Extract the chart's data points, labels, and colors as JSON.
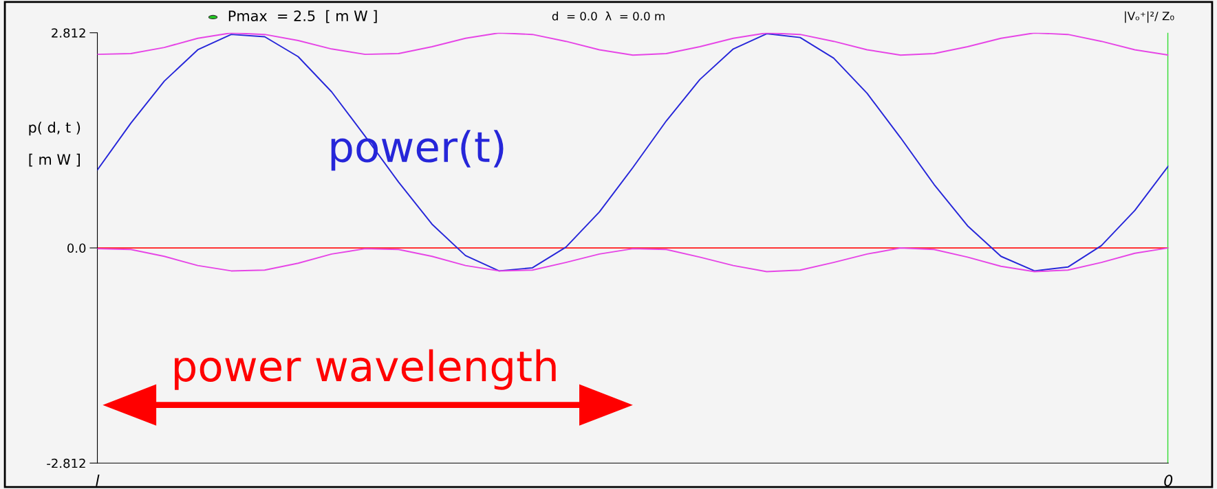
{
  "chart_data": {
    "type": "line",
    "categories": [
      "l",
      null,
      null,
      null,
      null,
      null,
      null,
      null,
      null,
      null,
      null,
      null,
      null,
      null,
      null,
      null,
      null,
      null,
      null,
      null,
      null,
      null,
      null,
      null,
      null,
      null,
      null,
      null,
      null,
      null,
      null,
      null,
      "0"
    ],
    "series": [
      {
        "name": "power(t)",
        "color": "#2626d9",
        "values": [
          1.02,
          1.63,
          2.18,
          2.59,
          2.79,
          2.76,
          2.5,
          2.04,
          1.46,
          0.86,
          0.31,
          -0.1,
          -0.3,
          -0.26,
          0.01,
          0.47,
          1.05,
          1.66,
          2.2,
          2.6,
          2.8,
          2.75,
          2.48,
          2.02,
          1.44,
          0.83,
          0.29,
          -0.11,
          -0.3,
          -0.25,
          0.03,
          0.49,
          1.07
        ]
      },
      {
        "color": "#e645e6",
        "values": [
          2.53,
          2.54,
          2.62,
          2.74,
          2.81,
          2.79,
          2.71,
          2.6,
          2.53,
          2.54,
          2.63,
          2.74,
          2.81,
          2.79,
          2.7,
          2.59,
          2.52,
          2.54,
          2.63,
          2.74,
          2.81,
          2.79,
          2.7,
          2.59,
          2.52,
          2.54,
          2.63,
          2.74,
          2.81,
          2.79,
          2.7,
          2.59,
          2.52
        ]
      },
      {
        "color": "#e645e6",
        "values": [
          -0.01,
          -0.02,
          -0.11,
          -0.23,
          -0.3,
          -0.29,
          -0.2,
          -0.08,
          -0.01,
          -0.02,
          -0.11,
          -0.23,
          -0.3,
          -0.29,
          -0.19,
          -0.08,
          -0.01,
          -0.02,
          -0.12,
          -0.23,
          -0.31,
          -0.29,
          -0.19,
          -0.08,
          0.0,
          -0.02,
          -0.12,
          -0.24,
          -0.31,
          -0.29,
          -0.19,
          -0.07,
          0.0
        ]
      }
    ],
    "ylim": [
      -2.812,
      2.812
    ],
    "yticks": [
      -2.812,
      {
        "value": 0,
        "label": "0.0"
      },
      2.812
    ],
    "ylabel": "p( d, t )\n\n[ m W ]",
    "ref_lines": [
      {
        "axis": "y",
        "value": 0,
        "color": "#ff3333"
      },
      {
        "axis": "x",
        "value": "0",
        "color": "#33dd33"
      }
    ],
    "annotations": [
      "Pmax  = 2.5  [ m W ]",
      "d  = 0.0  λ  = 0.0 m",
      "|Vₒ⁺|²/ Z₀",
      "power wavelength"
    ],
    "grid": false,
    "legend": false,
    "line_style": "solid",
    "marker": "none"
  }
}
